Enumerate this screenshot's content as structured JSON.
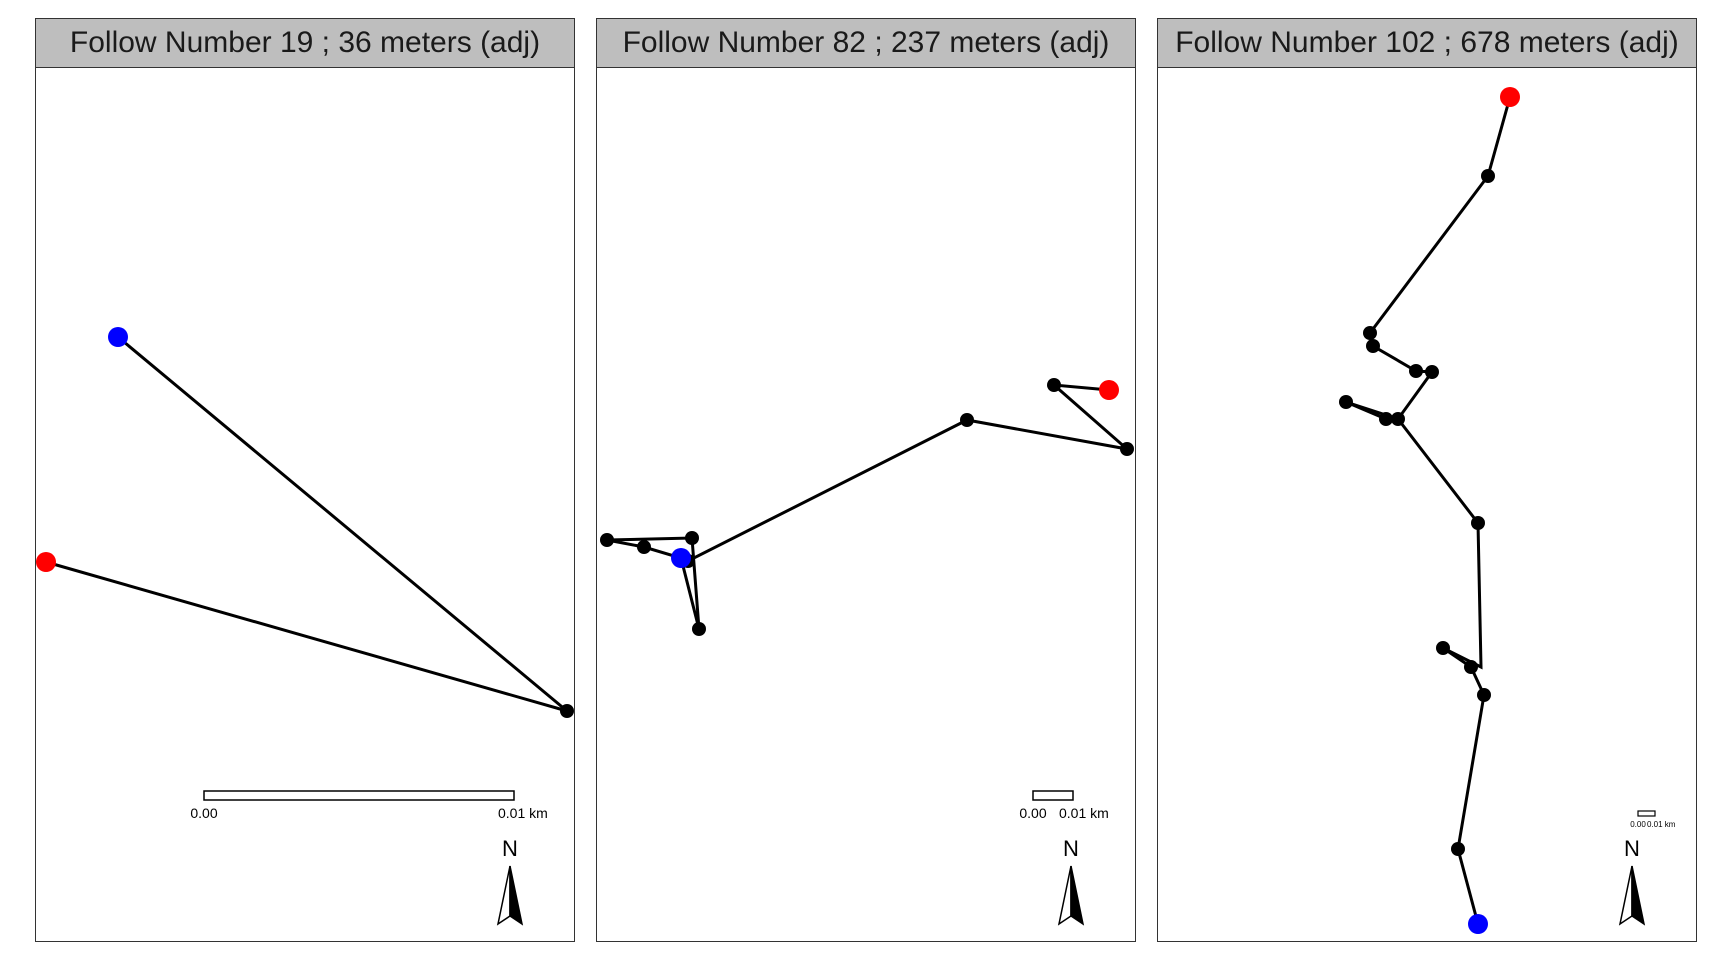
{
  "panels": [
    {
      "title": "Follow Number 19 ; 36 meters (adj)",
      "scalebar": {
        "left_label": "0.00",
        "right_label": "0.01 km"
      },
      "north_label": "N",
      "colors": {
        "start": "#0000ff",
        "end": "#ff0000",
        "path": "#000000"
      }
    },
    {
      "title": "Follow Number 82 ; 237 meters (adj)",
      "scalebar": {
        "left_label": "0.00",
        "right_label": "0.01 km"
      },
      "north_label": "N",
      "colors": {
        "start": "#0000ff",
        "end": "#ff0000",
        "path": "#000000"
      }
    },
    {
      "title": "Follow Number 102 ; 678 meters (adj)",
      "scalebar": {
        "left_label": "0.00",
        "right_label": "0.01 km"
      },
      "north_label": "N",
      "colors": {
        "start": "#0000ff",
        "end": "#ff0000",
        "path": "#000000"
      }
    }
  ]
}
